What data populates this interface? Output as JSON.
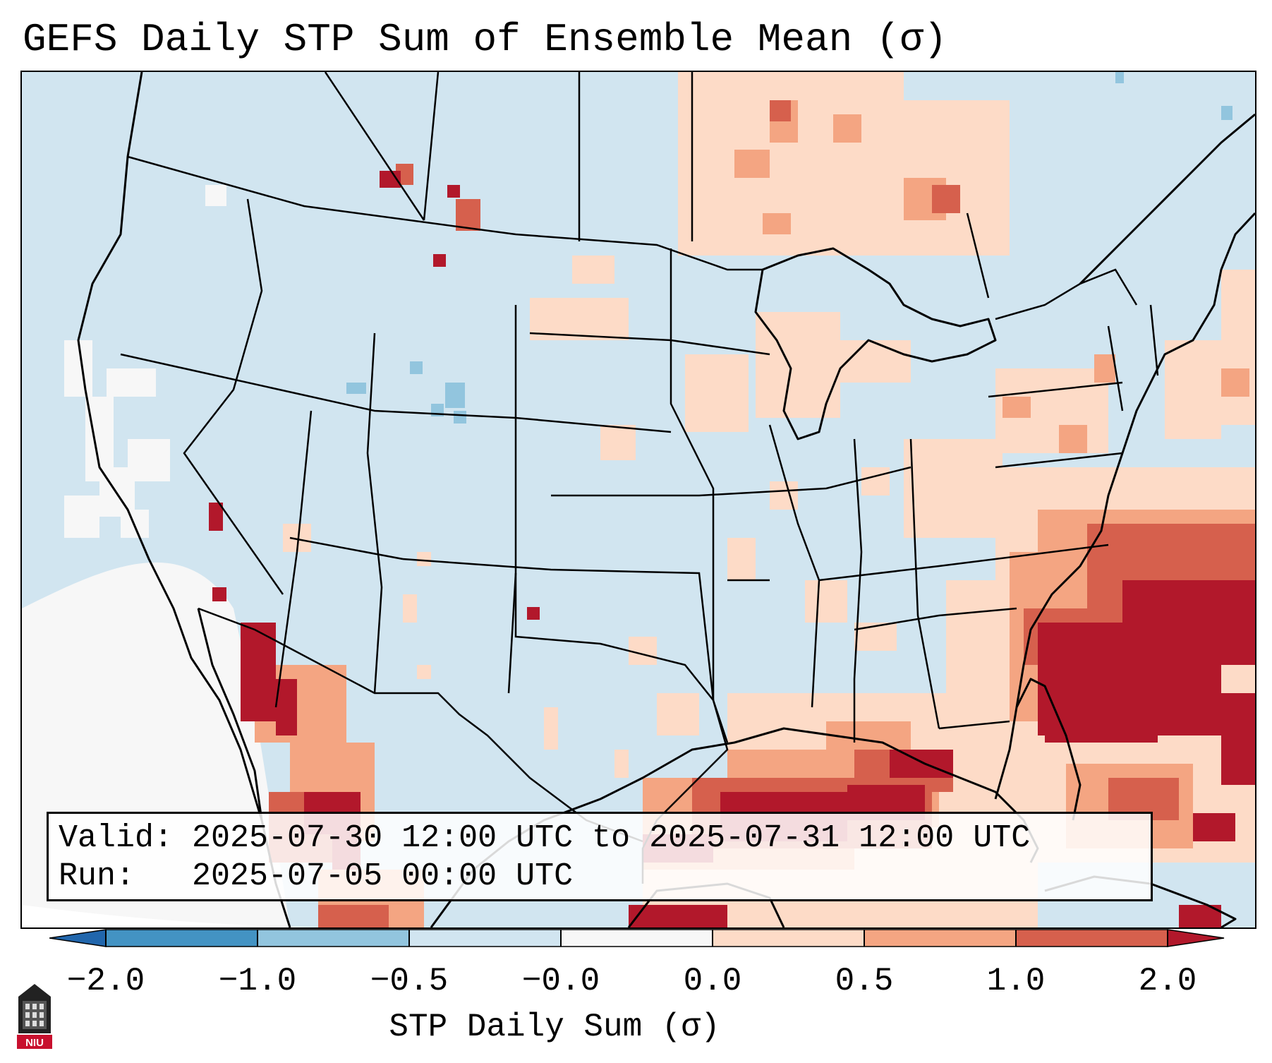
{
  "title": "GEFS Daily STP Sum of Ensemble Mean (σ)",
  "info": {
    "valid_line": "Valid: 2025-07-30 12:00 UTC to 2025-07-31 12:00 UTC",
    "run_line": "Run:   2025-07-05 00:00 UTC"
  },
  "colorbar": {
    "label": "STP Daily Sum (σ)",
    "ticks": [
      "−2.0",
      "−1.0",
      "−0.5",
      "−0.0",
      "0.0",
      "0.5",
      "1.0",
      "2.0"
    ],
    "colors": [
      "#4393c3",
      "#92c5de",
      "#d1e5f0",
      "#f7f7f7",
      "#fddbc7",
      "#f4a582",
      "#d6604d",
      "#b2182b"
    ],
    "under_color": "#2166ac",
    "over_color": "#b2182b"
  },
  "map": {
    "background_color": "#d1e5f0",
    "coastline_color": "#000000"
  },
  "logo": {
    "text": "NIU"
  }
}
